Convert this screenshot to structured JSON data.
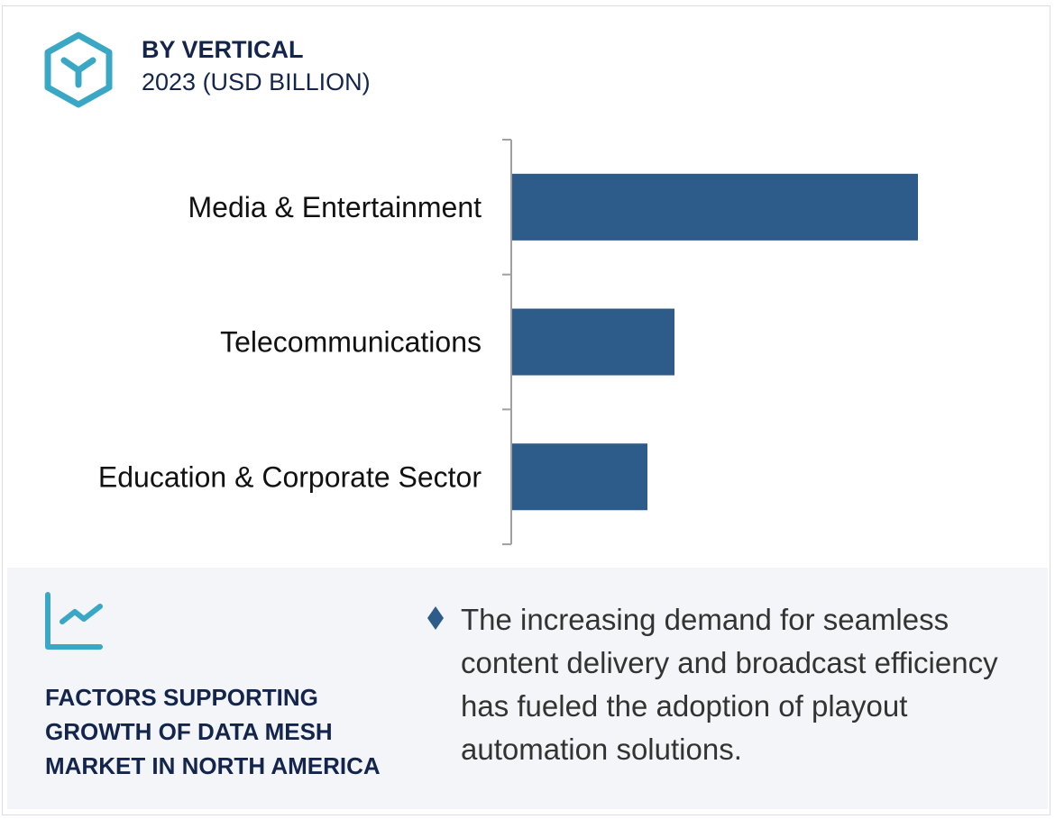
{
  "header": {
    "title": "BY VERTICAL",
    "subtitle": "2023 (USD BILLION)",
    "icon": "hexagon-y-icon"
  },
  "chart_data": {
    "type": "bar",
    "orientation": "horizontal",
    "title": "BY VERTICAL",
    "subtitle": "2023 (USD BILLION)",
    "categories": [
      "Media & Entertainment",
      "Telecommunications",
      "Education & Corporate Sector"
    ],
    "values": [
      3.0,
      1.2,
      1.0
    ],
    "xlabel": "",
    "ylabel": "",
    "xlim": [
      0,
      3.0
    ],
    "grid": false,
    "bar_color": "#2d5b8a"
  },
  "footer": {
    "icon": "trend-chart-icon",
    "heading": "FACTORS SUPPORTING GROWTH OF DATA MESH MARKET IN NORTH AMERICA",
    "bullets": [
      "The increasing demand for seamless content delivery and broadcast efficiency has fueled the adoption of playout automation solutions."
    ]
  },
  "colors": {
    "accent": "#3aa8c5",
    "navy": "#13254d",
    "bar": "#2d5b8a",
    "panel": "#f3f5f9"
  }
}
